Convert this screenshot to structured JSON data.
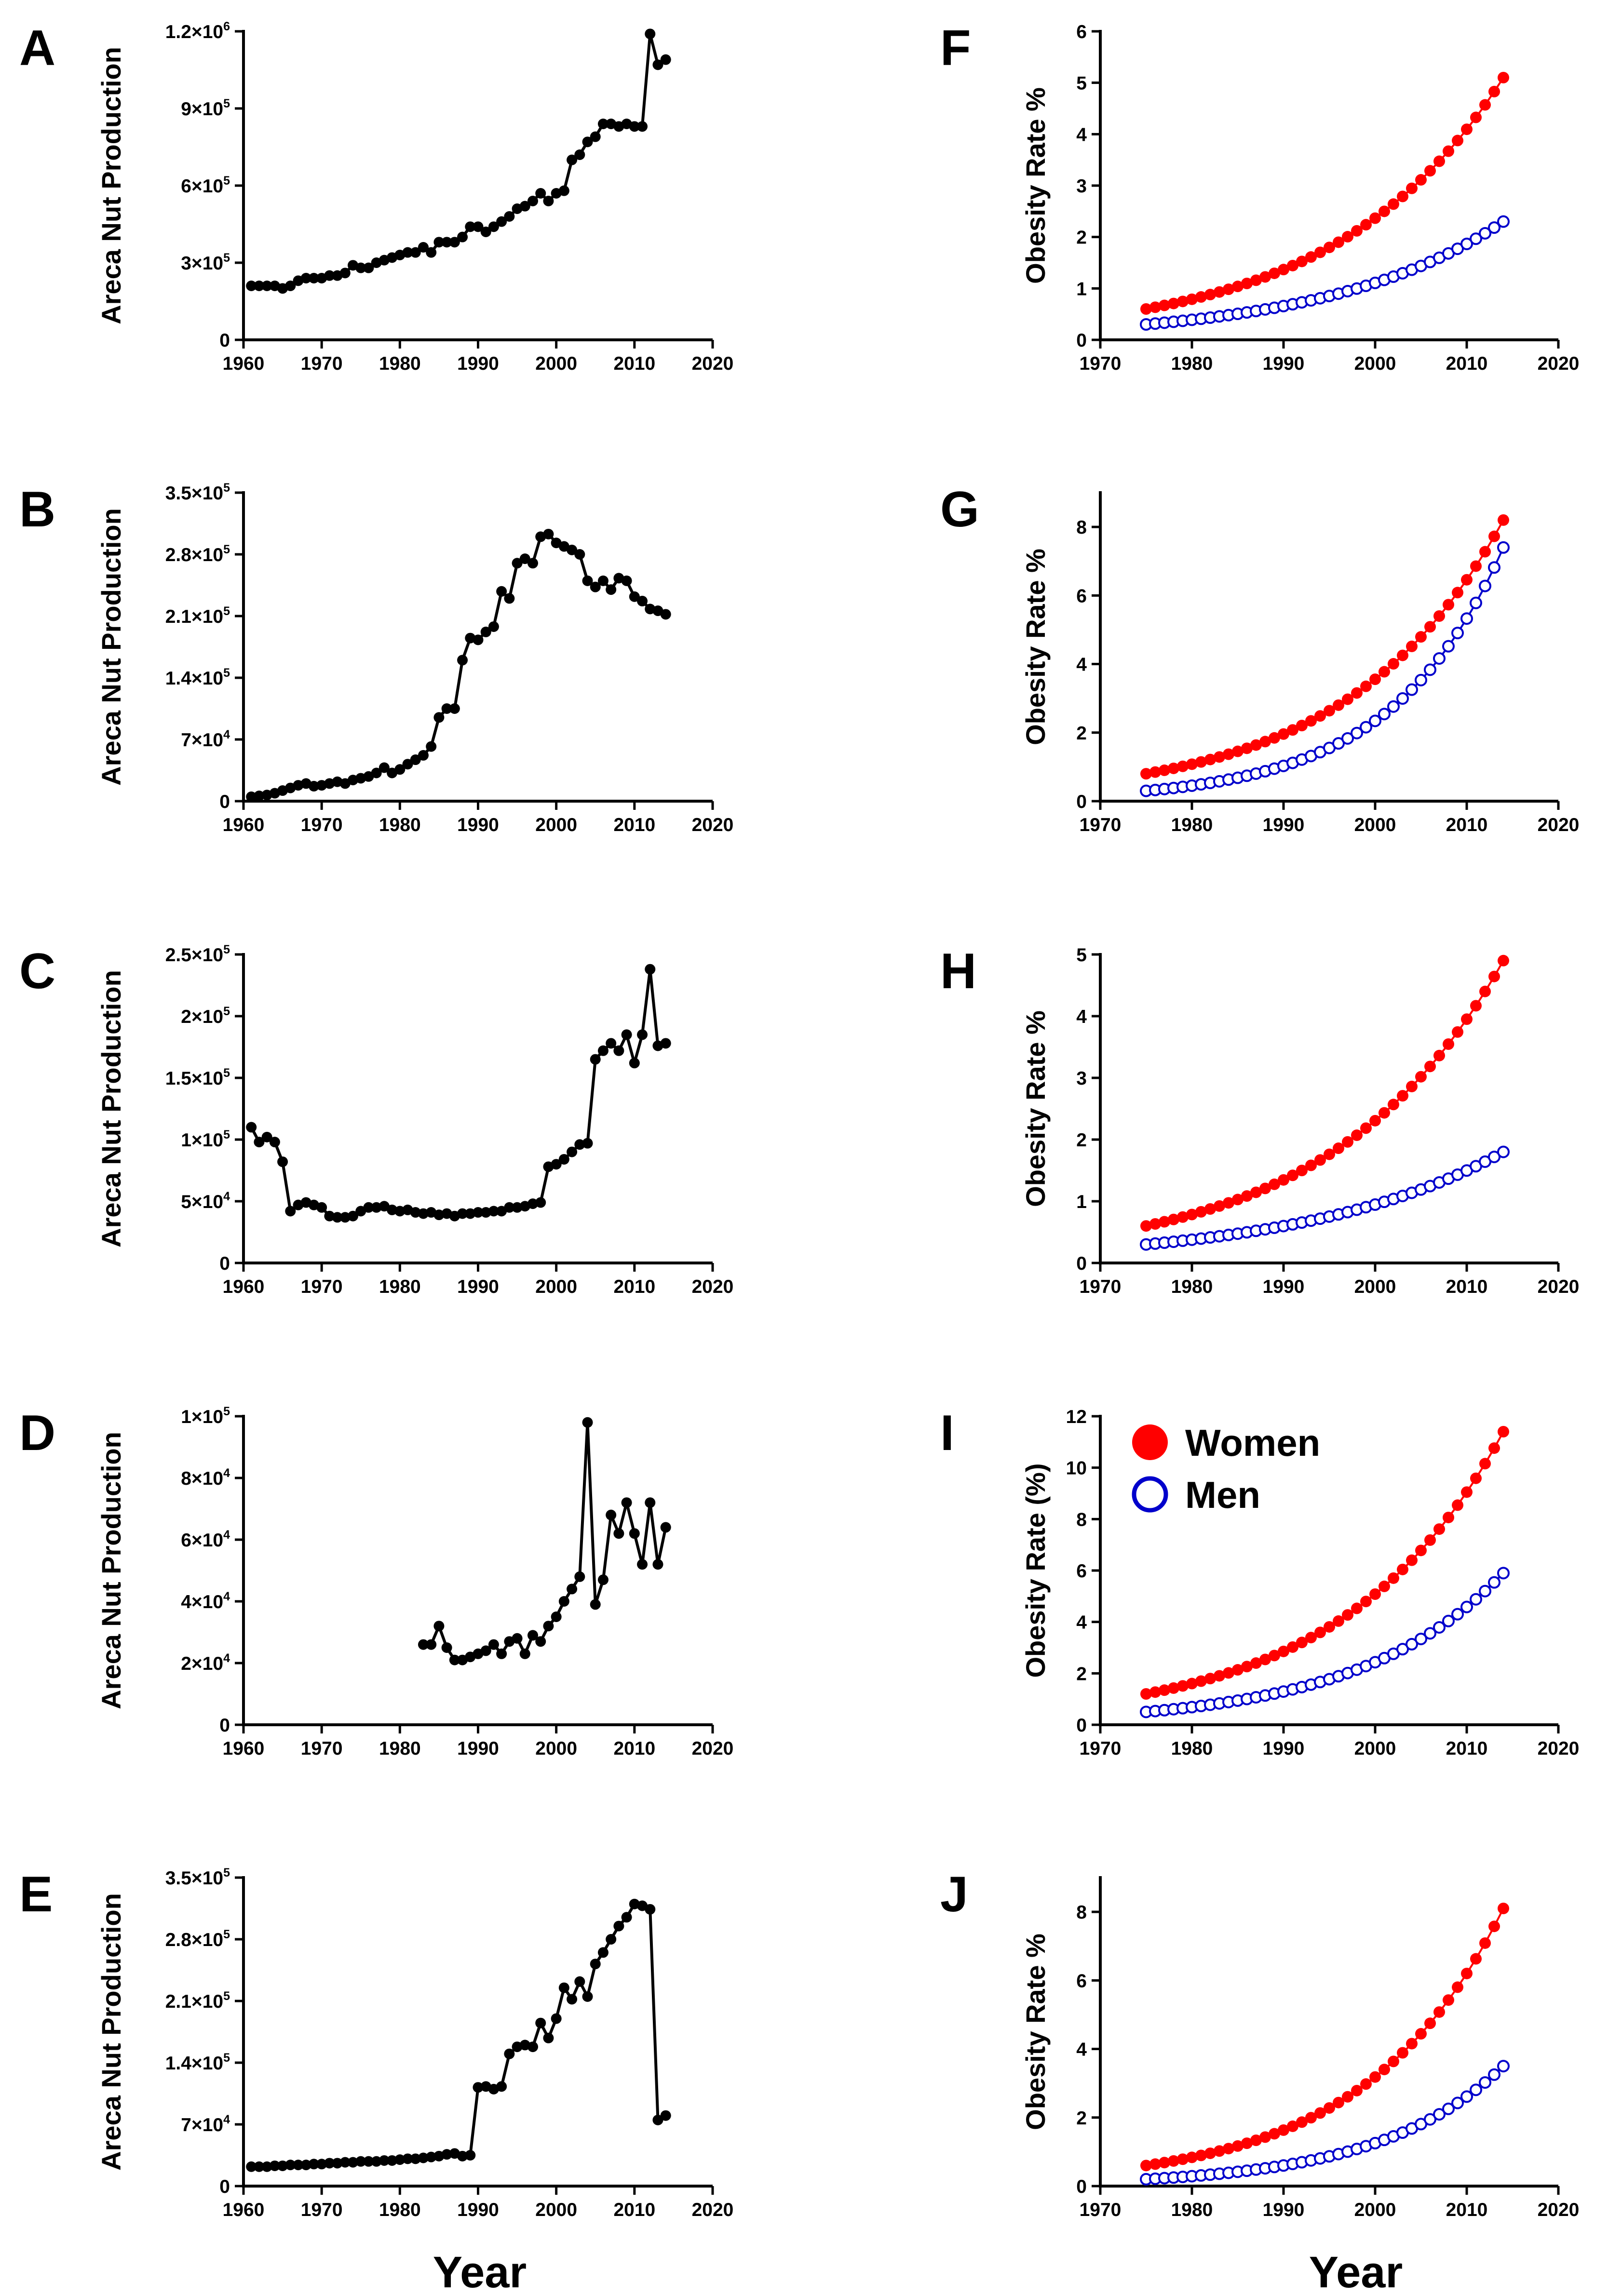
{
  "figure": {
    "x_title_left": "Year",
    "x_title_right": "Year"
  },
  "legend": {
    "women": "Women",
    "men": "Men"
  },
  "colors": {
    "line": "#000000",
    "women": "#ff0000",
    "men": "#0000cc"
  },
  "chart_data": [
    {
      "id": "A",
      "type": "line",
      "panel_label": "A",
      "xlabel": "",
      "ylabel": "Areca Nut Production",
      "xlim": [
        1960,
        2020
      ],
      "xticks": [
        1960,
        1970,
        1980,
        1990,
        2000,
        2010,
        2020
      ],
      "ylim": [
        0,
        1200000
      ],
      "yticks": [
        {
          "value": 0,
          "label": "0"
        },
        {
          "value": 300000,
          "label": "3×10",
          "exp": "5"
        },
        {
          "value": 600000,
          "label": "6×10",
          "exp": "5"
        },
        {
          "value": 900000,
          "label": "9×10",
          "exp": "5"
        },
        {
          "value": 1200000,
          "label": "1.2×10",
          "exp": "6"
        }
      ],
      "series": [
        {
          "name": "Areca Nut Production",
          "x": [
            1961,
            1962,
            1963,
            1964,
            1965,
            1966,
            1967,
            1968,
            1969,
            1970,
            1971,
            1972,
            1973,
            1974,
            1975,
            1976,
            1977,
            1978,
            1979,
            1980,
            1981,
            1982,
            1983,
            1984,
            1985,
            1986,
            1987,
            1988,
            1989,
            1990,
            1991,
            1992,
            1993,
            1994,
            1995,
            1996,
            1997,
            1998,
            1999,
            2000,
            2001,
            2002,
            2003,
            2004,
            2005,
            2006,
            2007,
            2008,
            2009,
            2010,
            2011,
            2012,
            2013,
            2014
          ],
          "y": [
            210000,
            210000,
            210000,
            210000,
            200000,
            210000,
            230000,
            240000,
            240000,
            240000,
            250000,
            250000,
            260000,
            290000,
            280000,
            280000,
            300000,
            310000,
            320000,
            330000,
            340000,
            340000,
            360000,
            340000,
            380000,
            380000,
            380000,
            400000,
            440000,
            440000,
            420000,
            440000,
            460000,
            480000,
            510000,
            520000,
            540000,
            570000,
            540000,
            570000,
            580000,
            700000,
            720000,
            770000,
            790000,
            840000,
            840000,
            830000,
            840000,
            830000,
            830000,
            1190000,
            1070000,
            1090000
          ]
        }
      ]
    },
    {
      "id": "B",
      "type": "line",
      "panel_label": "B",
      "xlabel": "",
      "ylabel": "Areca Nut Production",
      "xlim": [
        1960,
        2020
      ],
      "xticks": [
        1960,
        1970,
        1980,
        1990,
        2000,
        2010,
        2020
      ],
      "ylim": [
        0,
        350000
      ],
      "yticks": [
        {
          "value": 0,
          "label": "0"
        },
        {
          "value": 70000,
          "label": "7×10",
          "exp": "4"
        },
        {
          "value": 140000,
          "label": "1.4×10",
          "exp": "5"
        },
        {
          "value": 210000,
          "label": "2.1×10",
          "exp": "5"
        },
        {
          "value": 280000,
          "label": "2.8×10",
          "exp": "5"
        },
        {
          "value": 350000,
          "label": "3.5×10",
          "exp": "5"
        }
      ],
      "series": [
        {
          "name": "Areca Nut Production",
          "x": [
            1961,
            1962,
            1963,
            1964,
            1965,
            1966,
            1967,
            1968,
            1969,
            1970,
            1971,
            1972,
            1973,
            1974,
            1975,
            1976,
            1977,
            1978,
            1979,
            1980,
            1981,
            1982,
            1983,
            1984,
            1985,
            1986,
            1987,
            1988,
            1989,
            1990,
            1991,
            1992,
            1993,
            1994,
            1995,
            1996,
            1997,
            1998,
            1999,
            2000,
            2001,
            2002,
            2003,
            2004,
            2005,
            2006,
            2007,
            2008,
            2009,
            2010,
            2011,
            2012,
            2013,
            2014
          ],
          "y": [
            5000,
            6000,
            7000,
            9000,
            12000,
            15000,
            18000,
            20000,
            17000,
            18000,
            20000,
            22000,
            20000,
            24000,
            26000,
            28000,
            32000,
            38000,
            32000,
            36000,
            42000,
            47000,
            52000,
            62000,
            95000,
            105000,
            105000,
            160000,
            185000,
            183000,
            192000,
            198000,
            238000,
            230000,
            270000,
            275000,
            270000,
            300000,
            303000,
            293000,
            289000,
            285000,
            280000,
            250000,
            243000,
            250000,
            240000,
            253000,
            250000,
            232000,
            227000,
            218000,
            216000,
            212000
          ]
        }
      ]
    },
    {
      "id": "C",
      "type": "line",
      "panel_label": "C",
      "xlabel": "",
      "ylabel": "Areca Nut Production",
      "xlim": [
        1960,
        2020
      ],
      "xticks": [
        1960,
        1970,
        1980,
        1990,
        2000,
        2010,
        2020
      ],
      "ylim": [
        0,
        250000
      ],
      "yticks": [
        {
          "value": 0,
          "label": "0"
        },
        {
          "value": 50000,
          "label": "5×10",
          "exp": "4"
        },
        {
          "value": 100000,
          "label": "1×10",
          "exp": "5"
        },
        {
          "value": 150000,
          "label": "1.5×10",
          "exp": "5"
        },
        {
          "value": 200000,
          "label": "2×10",
          "exp": "5"
        },
        {
          "value": 250000,
          "label": "2.5×10",
          "exp": "5"
        }
      ],
      "series": [
        {
          "name": "Areca Nut Production",
          "x": [
            1961,
            1962,
            1963,
            1964,
            1965,
            1966,
            1967,
            1968,
            1969,
            1970,
            1971,
            1972,
            1973,
            1974,
            1975,
            1976,
            1977,
            1978,
            1979,
            1980,
            1981,
            1982,
            1983,
            1984,
            1985,
            1986,
            1987,
            1988,
            1989,
            1990,
            1991,
            1992,
            1993,
            1994,
            1995,
            1996,
            1997,
            1998,
            1999,
            2000,
            2001,
            2002,
            2003,
            2004,
            2005,
            2006,
            2007,
            2008,
            2009,
            2010,
            2011,
            2012,
            2013,
            2014
          ],
          "y": [
            110000,
            98000,
            102000,
            98000,
            82000,
            42000,
            47000,
            49000,
            47000,
            45000,
            38000,
            37000,
            37000,
            38000,
            42000,
            45000,
            45000,
            46000,
            43000,
            42000,
            43000,
            41000,
            40000,
            41000,
            39000,
            40000,
            38000,
            40000,
            40000,
            41000,
            41000,
            42000,
            42000,
            45000,
            45000,
            46000,
            48000,
            49000,
            78000,
            80000,
            84000,
            90000,
            96000,
            97000,
            165000,
            172000,
            178000,
            172000,
            185000,
            162000,
            185000,
            238000,
            176000,
            178000
          ]
        }
      ]
    },
    {
      "id": "D",
      "type": "line",
      "panel_label": "D",
      "xlabel": "",
      "ylabel": "Areca Nut Production",
      "xlim": [
        1960,
        2020
      ],
      "xticks": [
        1960,
        1970,
        1980,
        1990,
        2000,
        2010,
        2020
      ],
      "ylim": [
        0,
        100000
      ],
      "yticks": [
        {
          "value": 0,
          "label": "0"
        },
        {
          "value": 20000,
          "label": "2×10",
          "exp": "4"
        },
        {
          "value": 40000,
          "label": "4×10",
          "exp": "4"
        },
        {
          "value": 60000,
          "label": "6×10",
          "exp": "4"
        },
        {
          "value": 80000,
          "label": "8×10",
          "exp": "4"
        },
        {
          "value": 100000,
          "label": "1×10",
          "exp": "5"
        }
      ],
      "series": [
        {
          "name": "Areca Nut Production",
          "x": [
            1983,
            1984,
            1985,
            1986,
            1987,
            1988,
            1989,
            1990,
            1991,
            1992,
            1993,
            1994,
            1995,
            1996,
            1997,
            1998,
            1999,
            2000,
            2001,
            2002,
            2003,
            2004,
            2005,
            2006,
            2007,
            2008,
            2009,
            2010,
            2011,
            2012,
            2013,
            2014
          ],
          "y": [
            26000,
            26000,
            32000,
            25000,
            21000,
            21000,
            22000,
            23000,
            24000,
            26000,
            23000,
            27000,
            28000,
            23000,
            29000,
            27000,
            32000,
            35000,
            40000,
            44000,
            48000,
            98000,
            39000,
            47000,
            68000,
            62000,
            72000,
            62000,
            52000,
            72000,
            52000,
            64000
          ]
        }
      ]
    },
    {
      "id": "E",
      "type": "line",
      "panel_label": "E",
      "xlabel": "Year",
      "ylabel": "Areca Nut Production",
      "xlim": [
        1960,
        2020
      ],
      "xticks": [
        1960,
        1970,
        1980,
        1990,
        2000,
        2010,
        2020
      ],
      "ylim": [
        0,
        350000
      ],
      "yticks": [
        {
          "value": 0,
          "label": "0"
        },
        {
          "value": 70000,
          "label": "7×10",
          "exp": "4"
        },
        {
          "value": 140000,
          "label": "1.4×10",
          "exp": "5"
        },
        {
          "value": 210000,
          "label": "2.1×10",
          "exp": "5"
        },
        {
          "value": 280000,
          "label": "2.8×10",
          "exp": "5"
        },
        {
          "value": 350000,
          "label": "3.5×10",
          "exp": "5"
        }
      ],
      "series": [
        {
          "name": "Areca Nut Production",
          "x": [
            1961,
            1962,
            1963,
            1964,
            1965,
            1966,
            1967,
            1968,
            1969,
            1970,
            1971,
            1972,
            1973,
            1974,
            1975,
            1976,
            1977,
            1978,
            1979,
            1980,
            1981,
            1982,
            1983,
            1984,
            1985,
            1986,
            1987,
            1988,
            1989,
            1990,
            1991,
            1992,
            1993,
            1994,
            1995,
            1996,
            1997,
            1998,
            1999,
            2000,
            2001,
            2002,
            2003,
            2004,
            2005,
            2006,
            2007,
            2008,
            2009,
            2010,
            2011,
            2012,
            2013,
            2014
          ],
          "y": [
            22000,
            22000,
            22000,
            23000,
            23000,
            24000,
            24000,
            24000,
            25000,
            25000,
            26000,
            26000,
            27000,
            27000,
            28000,
            28000,
            28000,
            29000,
            29000,
            30000,
            31000,
            31000,
            32000,
            33000,
            34000,
            36000,
            37000,
            34000,
            35000,
            112000,
            113000,
            110000,
            113000,
            150000,
            158000,
            160000,
            158000,
            185000,
            168000,
            190000,
            225000,
            212000,
            232000,
            215000,
            252000,
            265000,
            280000,
            295000,
            305000,
            320000,
            318000,
            314000,
            75000,
            80000
          ]
        }
      ]
    },
    {
      "id": "F",
      "type": "line",
      "panel_label": "F",
      "xlabel": "",
      "ylabel": "Obesity Rate %",
      "xlim": [
        1970,
        2020
      ],
      "xticks": [
        1970,
        1980,
        1990,
        2000,
        2010,
        2020
      ],
      "ylim": [
        0,
        6
      ],
      "yticks": [
        {
          "value": 0,
          "label": "0"
        },
        {
          "value": 1,
          "label": "1"
        },
        {
          "value": 2,
          "label": "2"
        },
        {
          "value": 3,
          "label": "3"
        },
        {
          "value": 4,
          "label": "4"
        },
        {
          "value": 5,
          "label": "5"
        },
        {
          "value": 6,
          "label": "6"
        }
      ],
      "x_start": 1975,
      "x_end": 2014,
      "series": [
        {
          "name": "Women",
          "start": 0.6,
          "end": 5.1
        },
        {
          "name": "Men",
          "start": 0.3,
          "end": 2.3
        }
      ]
    },
    {
      "id": "G",
      "type": "line",
      "panel_label": "G",
      "xlabel": "",
      "ylabel": "Obesity Rate %",
      "xlim": [
        1970,
        2020
      ],
      "xticks": [
        1970,
        1980,
        1990,
        2000,
        2010,
        2020
      ],
      "ylim": [
        0,
        9
      ],
      "yticks": [
        {
          "value": 0,
          "label": "0"
        },
        {
          "value": 2,
          "label": "2"
        },
        {
          "value": 4,
          "label": "4"
        },
        {
          "value": 6,
          "label": "6"
        },
        {
          "value": 8,
          "label": "8"
        }
      ],
      "x_start": 1975,
      "x_end": 2014,
      "series": [
        {
          "name": "Women",
          "start": 0.8,
          "end": 8.2
        },
        {
          "name": "Men",
          "start": 0.3,
          "end": 7.4
        }
      ]
    },
    {
      "id": "H",
      "type": "line",
      "panel_label": "H",
      "xlabel": "",
      "ylabel": "Obesity Rate %",
      "xlim": [
        1970,
        2020
      ],
      "xticks": [
        1970,
        1980,
        1990,
        2000,
        2010,
        2020
      ],
      "ylim": [
        0,
        5
      ],
      "yticks": [
        {
          "value": 0,
          "label": "0"
        },
        {
          "value": 1,
          "label": "1"
        },
        {
          "value": 2,
          "label": "2"
        },
        {
          "value": 3,
          "label": "3"
        },
        {
          "value": 4,
          "label": "4"
        },
        {
          "value": 5,
          "label": "5"
        }
      ],
      "x_start": 1975,
      "x_end": 2014,
      "series": [
        {
          "name": "Women",
          "start": 0.6,
          "end": 4.9
        },
        {
          "name": "Men",
          "start": 0.3,
          "end": 1.8
        }
      ]
    },
    {
      "id": "I",
      "type": "line",
      "panel_label": "I",
      "xlabel": "",
      "ylabel": "Obesity Rate (%)",
      "xlim": [
        1970,
        2020
      ],
      "xticks": [
        1970,
        1980,
        1990,
        2000,
        2010,
        2020
      ],
      "ylim": [
        0,
        12
      ],
      "yticks": [
        {
          "value": 0,
          "label": "0"
        },
        {
          "value": 2,
          "label": "2"
        },
        {
          "value": 4,
          "label": "4"
        },
        {
          "value": 6,
          "label": "6"
        },
        {
          "value": 8,
          "label": "8"
        },
        {
          "value": 10,
          "label": "10"
        },
        {
          "value": 12,
          "label": "12"
        }
      ],
      "x_start": 1975,
      "x_end": 2014,
      "legend_position": "top-left",
      "series": [
        {
          "name": "Women",
          "start": 1.2,
          "end": 11.4
        },
        {
          "name": "Men",
          "start": 0.5,
          "end": 5.9
        }
      ]
    },
    {
      "id": "J",
      "type": "line",
      "panel_label": "J",
      "xlabel": "Year",
      "ylabel": "Obesity Rate %",
      "xlim": [
        1970,
        2020
      ],
      "xticks": [
        1970,
        1980,
        1990,
        2000,
        2010,
        2020
      ],
      "ylim": [
        0,
        9
      ],
      "yticks": [
        {
          "value": 0,
          "label": "0"
        },
        {
          "value": 2,
          "label": "2"
        },
        {
          "value": 4,
          "label": "4"
        },
        {
          "value": 6,
          "label": "6"
        },
        {
          "value": 8,
          "label": "8"
        }
      ],
      "x_start": 1975,
      "x_end": 2014,
      "series": [
        {
          "name": "Women",
          "start": 0.6,
          "end": 8.1
        },
        {
          "name": "Men",
          "start": 0.2,
          "end": 3.5
        }
      ]
    }
  ]
}
